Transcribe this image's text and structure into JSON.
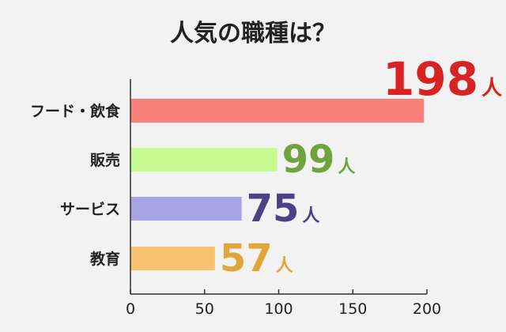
{
  "chart_data": {
    "type": "bar",
    "orientation": "horizontal",
    "title": "人気の職種は？",
    "categories": [
      "フード・飲食",
      "販売",
      "サービス",
      "教育"
    ],
    "values": [
      198,
      99,
      75,
      57
    ],
    "unit": "人",
    "xlim": [
      0,
      200
    ],
    "xticks": [
      "0",
      "50",
      "100",
      "150",
      "200"
    ],
    "grid": false,
    "bar_colors": [
      "#fa7e7b",
      "#c6fb92",
      "#a8a3e3",
      "#f7c372"
    ],
    "label_colors": [
      "#d62424",
      "#6fa43c",
      "#4b4185",
      "#e2a53a"
    ]
  }
}
